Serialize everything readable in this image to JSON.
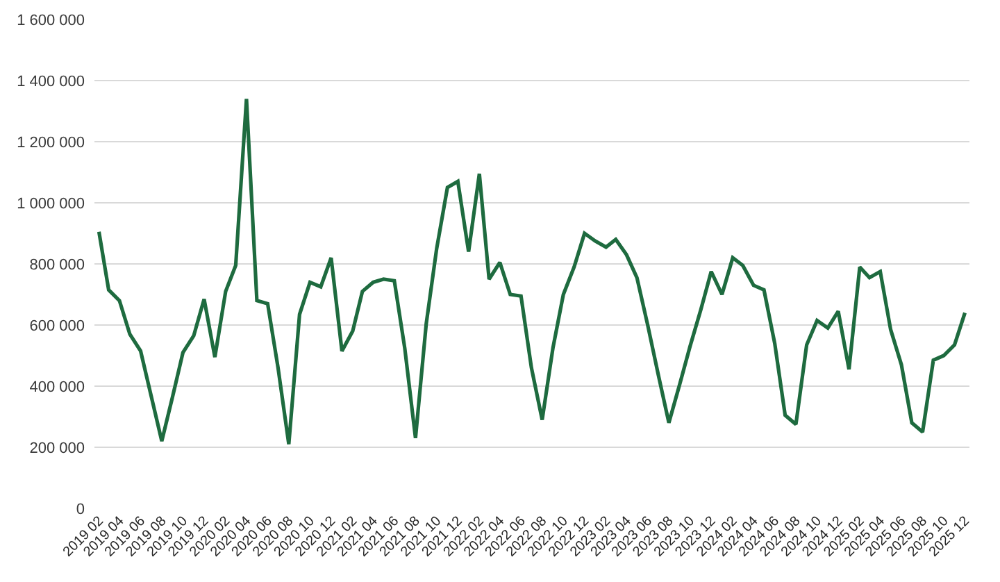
{
  "chart_data": {
    "type": "line",
    "x": [
      "2019-02",
      "2019-03",
      "2019-04",
      "2019-05",
      "2019-06",
      "2019-07",
      "2019-08",
      "2019-09",
      "2019-10",
      "2019-11",
      "2019-12",
      "2020-01",
      "2020-02",
      "2020-03",
      "2020-04",
      "2020-05",
      "2020-06",
      "2020-07",
      "2020-08",
      "2020-09",
      "2020-10",
      "2020-11",
      "2020-12",
      "2021-01",
      "2021-02",
      "2021-03",
      "2021-04",
      "2021-05",
      "2021-06",
      "2021-07",
      "2021-08",
      "2021-09",
      "2021-10",
      "2021-11",
      "2021-12",
      "2022-01",
      "2022-02",
      "2022-03",
      "2022-04",
      "2022-05",
      "2022-06",
      "2022-07",
      "2022-08",
      "2022-09",
      "2022-10",
      "2022-11",
      "2022-12",
      "2023-01",
      "2023-02",
      "2023-03",
      "2023-04",
      "2023-05",
      "2023-06",
      "2023-07",
      "2023-08",
      "2023-09",
      "2023-10",
      "2023-11",
      "2023-12",
      "2024-01",
      "2024-02",
      "2024-03",
      "2024-04",
      "2024-05",
      "2024-06",
      "2024-07",
      "2024-08",
      "2024-09",
      "2024-10",
      "2024-11",
      "2024-12",
      "2025-01",
      "2025-02",
      "2025-03",
      "2025-04",
      "2025-05",
      "2025-06",
      "2025-07",
      "2025-08",
      "2025-09",
      "2025-10",
      "2025-11",
      "2025-12"
    ],
    "series": [
      {
        "color": "#1e6b3f",
        "values": [
          905000,
          715000,
          680000,
          570000,
          515000,
          370000,
          220000,
          365000,
          510000,
          565000,
          685000,
          495000,
          710000,
          795000,
          1340000,
          680000,
          670000,
          460000,
          210000,
          635000,
          740000,
          725000,
          820000,
          515000,
          580000,
          710000,
          740000,
          750000,
          745000,
          525000,
          230000,
          605000,
          850000,
          1050000,
          1070000,
          840000,
          1095000,
          750000,
          805000,
          700000,
          695000,
          460000,
          290000,
          525000,
          700000,
          790000,
          900000,
          875000,
          855000,
          880000,
          830000,
          755000,
          600000,
          440000,
          280000,
          405000,
          530000,
          650000,
          775000,
          700000,
          820000,
          795000,
          730000,
          715000,
          540000,
          305000,
          275000,
          535000,
          615000,
          590000,
          645000,
          455000,
          790000,
          755000,
          775000,
          585000,
          470000,
          280000,
          250000,
          485000,
          500000,
          535000,
          640000
        ]
      }
    ],
    "xlim": [
      "2019-01-19",
      "2025-12-14"
    ],
    "xticks": [
      {
        "value": "2019-02",
        "label": "2019 02"
      },
      {
        "value": "2019-04",
        "label": "2019 04"
      },
      {
        "value": "2019-06",
        "label": "2019 06"
      },
      {
        "value": "2019-08",
        "label": "2019 08"
      },
      {
        "value": "2019-10",
        "label": "2019 10"
      },
      {
        "value": "2019-12",
        "label": "2019 12"
      },
      {
        "value": "2020-02",
        "label": "2020 02"
      },
      {
        "value": "2020-04",
        "label": "2020 04"
      },
      {
        "value": "2020-06",
        "label": "2020 06"
      },
      {
        "value": "2020-08",
        "label": "2020 08"
      },
      {
        "value": "2020-10",
        "label": "2020 10"
      },
      {
        "value": "2020-12",
        "label": "2020 12"
      },
      {
        "value": "2021-02",
        "label": "2021 02"
      },
      {
        "value": "2021-04",
        "label": "2021 04"
      },
      {
        "value": "2021-06",
        "label": "2021 06"
      },
      {
        "value": "2021-08",
        "label": "2021 08"
      },
      {
        "value": "2021-10",
        "label": "2021 10"
      },
      {
        "value": "2021-12",
        "label": "2021 12"
      },
      {
        "value": "2022-02",
        "label": "2022 02"
      },
      {
        "value": "2022-04",
        "label": "2022 04"
      },
      {
        "value": "2022-06",
        "label": "2022 06"
      },
      {
        "value": "2022-08",
        "label": "2022 08"
      },
      {
        "value": "2022-10",
        "label": "2022 10"
      },
      {
        "value": "2022-12",
        "label": "2022 12"
      },
      {
        "value": "2023-02",
        "label": "2023 02"
      },
      {
        "value": "2023-04",
        "label": "2023 04"
      },
      {
        "value": "2023-06",
        "label": "2023 06"
      },
      {
        "value": "2023-08",
        "label": "2023 08"
      },
      {
        "value": "2023-10",
        "label": "2023 10"
      },
      {
        "value": "2023-12",
        "label": "2023 12"
      },
      {
        "value": "2024-02",
        "label": "2024 02"
      },
      {
        "value": "2024-04",
        "label": "2024 04"
      },
      {
        "value": "2024-06",
        "label": "2024 06"
      },
      {
        "value": "2024-08",
        "label": "2024 08"
      },
      {
        "value": "2024-10",
        "label": "2024 10"
      },
      {
        "value": "2024-12",
        "label": "2024 12"
      },
      {
        "value": "2025-02",
        "label": "2025 02"
      },
      {
        "value": "2025-04",
        "label": "2025 04"
      },
      {
        "value": "2025-06",
        "label": "2025 06"
      },
      {
        "value": "2025-08",
        "label": "2025 08"
      },
      {
        "value": "2025-10",
        "label": "2025 10"
      },
      {
        "value": "2025-12",
        "label": "2025 12"
      }
    ],
    "ylim": [
      0,
      1600000
    ],
    "yticks": [
      0,
      {
        "value": 200000,
        "label": "200 000"
      },
      {
        "value": 400000,
        "label": "400 000"
      },
      {
        "value": 600000,
        "label": "600 000"
      },
      {
        "value": 800000,
        "label": "800 000"
      },
      {
        "value": 1000000,
        "label": "1 000 000"
      },
      {
        "value": 1200000,
        "label": "1 200 000"
      },
      {
        "value": 1400000,
        "label": "1 400 000"
      },
      {
        "value": 1600000,
        "label": "1 600 000"
      }
    ],
    "grid": "y",
    "marker": "none",
    "line_style": "solid"
  }
}
